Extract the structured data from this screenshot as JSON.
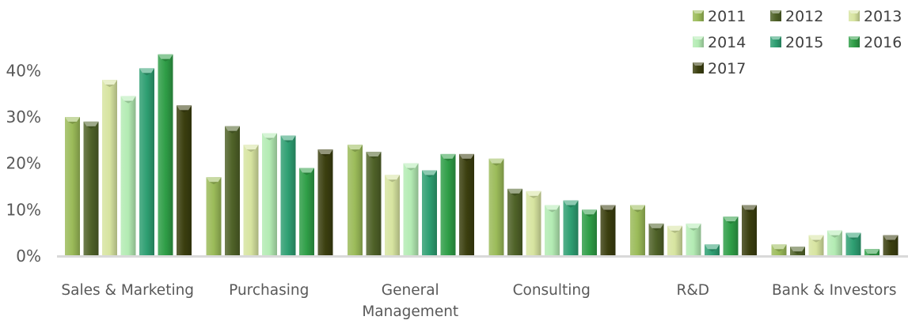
{
  "chart_data": {
    "type": "bar",
    "categories": [
      "Sales & Marketing",
      "Purchasing",
      "General Management",
      "Consulting",
      "R&D",
      "Bank & Investors"
    ],
    "category_lines": [
      [
        "Sales & Marketing"
      ],
      [
        "Purchasing"
      ],
      [
        "General",
        "Management"
      ],
      [
        "Consulting"
      ],
      [
        "R&D"
      ],
      [
        "Bank & Investors"
      ]
    ],
    "series": [
      {
        "name": "2011",
        "color": "#9BBB59",
        "values": [
          30,
          17,
          24,
          21,
          11,
          2.5
        ]
      },
      {
        "name": "2012",
        "color": "#4F6228",
        "values": [
          29,
          28,
          22.5,
          14.5,
          7,
          2
        ]
      },
      {
        "name": "2013",
        "color": "#D7E4A0",
        "values": [
          38,
          24,
          17.5,
          14,
          6.5,
          4.5
        ]
      },
      {
        "name": "2014",
        "color": "#B3EBB3",
        "values": [
          34.5,
          26.5,
          20,
          11,
          7,
          5.5
        ]
      },
      {
        "name": "2015",
        "color": "#2E9F72",
        "values": [
          40.5,
          26,
          18.5,
          12,
          2.5,
          5
        ]
      },
      {
        "name": "2016",
        "color": "#2F9E47",
        "values": [
          43.5,
          19,
          22,
          10,
          8.5,
          1.5
        ]
      },
      {
        "name": "2017",
        "color": "#3B3F0F",
        "values": [
          32.5,
          23,
          22,
          11,
          11,
          4.5
        ]
      }
    ],
    "ylim": [
      0,
      45
    ],
    "yticks": [
      0,
      10,
      20,
      30,
      40
    ],
    "ytick_labels": [
      "0%",
      "10%",
      "20%",
      "30%",
      "40%"
    ],
    "grid": false,
    "legend_position": "top-right",
    "title": "",
    "xlabel": "",
    "ylabel": ""
  }
}
